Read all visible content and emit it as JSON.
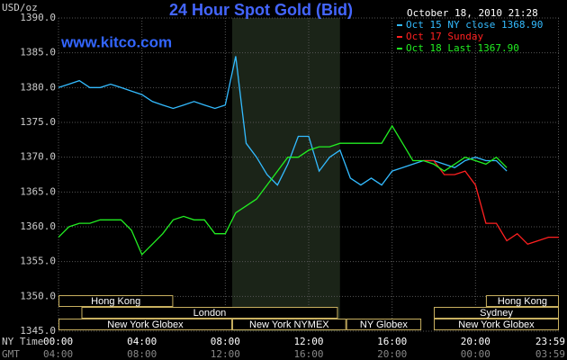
{
  "chart_data": {
    "type": "line",
    "title": "24 Hour Spot Gold (Bid)",
    "source": "www.kitco.com",
    "date_label": "October 18, 2010 21:28",
    "y_unit": "USD/oz",
    "x_axis_labels": [
      "NY Time",
      "GMT"
    ],
    "x": [
      0,
      0.5,
      1,
      1.5,
      2,
      2.5,
      3,
      3.5,
      4,
      4.5,
      5,
      5.5,
      6,
      6.5,
      7,
      7.5,
      8,
      8.5,
      9,
      9.5,
      10,
      10.5,
      11,
      11.5,
      12,
      12.5,
      13,
      13.5,
      14,
      14.5,
      15,
      15.5,
      16,
      16.5,
      17,
      17.5,
      18,
      18.5,
      19,
      19.5,
      20,
      20.5,
      21,
      21.5,
      22,
      22.5,
      23,
      23.5,
      24
    ],
    "series": [
      {
        "name": "Oct 15 NY close 1368.90",
        "color": "#33bbff",
        "values": [
          1380,
          1380.5,
          1381,
          1380,
          1380,
          1380.5,
          1380,
          1379.5,
          1379,
          1378,
          1377.5,
          1377,
          1377.5,
          1378,
          1377.5,
          1377,
          1377.5,
          1384.5,
          1372,
          1370,
          1367.5,
          1366,
          1369,
          1373,
          1373,
          1368,
          1370,
          1371,
          1367,
          1366,
          1367,
          1366,
          1368,
          1368.5,
          1369,
          1369.5,
          1369.5,
          1369,
          1368.5,
          1369.5,
          1370,
          1369.5,
          1369.5,
          1368,
          null,
          null,
          null,
          null,
          null
        ]
      },
      {
        "name": "Oct 17 Sunday",
        "color": "#ff2020",
        "values": [
          null,
          null,
          null,
          null,
          null,
          null,
          null,
          null,
          null,
          null,
          null,
          null,
          null,
          null,
          null,
          null,
          null,
          null,
          null,
          null,
          null,
          null,
          null,
          null,
          null,
          null,
          null,
          null,
          null,
          null,
          null,
          null,
          null,
          null,
          null,
          1369.5,
          1369.5,
          1367.5,
          1367.5,
          1368,
          1366,
          1360.5,
          1360.5,
          1358,
          1359,
          1357.5,
          1358,
          1358.5,
          1358.5
        ]
      },
      {
        "name": "Oct 18 Last 1367.90",
        "color": "#22ee22",
        "values": [
          1358.5,
          1360,
          1360.5,
          1360.5,
          1361,
          1361,
          1361,
          1359.5,
          1356,
          1357.5,
          1359,
          1361,
          1361.5,
          1361,
          1361,
          1359,
          1359,
          1362,
          1363,
          1364,
          1366,
          1368,
          1370,
          1370,
          1371,
          1371.5,
          1371.5,
          1372,
          1372,
          1372,
          1372,
          1372,
          1374.5,
          1372,
          1369.5,
          1369.5,
          1369,
          1368,
          1369,
          1370,
          1369.5,
          1369,
          1370,
          1368.5,
          null,
          null,
          null,
          null,
          null
        ]
      }
    ],
    "xlim": [
      0,
      24
    ],
    "xticks": [
      {
        "value": 0,
        "label": "00:00"
      },
      {
        "value": 4,
        "label": "04:00"
      },
      {
        "value": 8,
        "label": "08:00"
      },
      {
        "value": 12,
        "label": "12:00"
      },
      {
        "value": 16,
        "label": "16:00"
      },
      {
        "value": 20,
        "label": "20:00"
      },
      {
        "value": 23.98,
        "label": "23:59"
      }
    ],
    "gmt_ticks": [
      "04:00",
      "08:00",
      "12:00",
      "16:00",
      "20:00",
      "00:00",
      "03:59"
    ],
    "ylim": [
      1345,
      1390
    ],
    "yticks": [
      {
        "value": 1345,
        "label": "1345.0"
      },
      {
        "value": 1350,
        "label": "1350.0"
      },
      {
        "value": 1355,
        "label": "1355.0"
      },
      {
        "value": 1360,
        "label": "1360.0"
      },
      {
        "value": 1365,
        "label": "1365.0"
      },
      {
        "value": 1370,
        "label": "1370.0"
      },
      {
        "value": 1375,
        "label": "1375.0"
      },
      {
        "value": 1380,
        "label": "1380.0"
      },
      {
        "value": 1385,
        "label": "1385.0"
      },
      {
        "value": 1390,
        "label": "1390.0"
      }
    ],
    "grid": true,
    "highlight": {
      "start": 8.33,
      "end": 13.5
    },
    "sessions": [
      [
        {
          "label": "Hong Kong",
          "start": 0,
          "end": 5.5
        },
        {
          "label": "Hong Kong",
          "start": 20.5,
          "end": 24
        }
      ],
      [
        {
          "label": "London",
          "start": 1.1,
          "end": 13.4
        },
        {
          "label": "Sydney",
          "start": 18,
          "end": 24
        }
      ],
      [
        {
          "label": "New York Globex",
          "start": 0,
          "end": 8.33
        },
        {
          "label": "New York NYMEX",
          "start": 8.33,
          "end": 13.8
        },
        {
          "label": "NY Globex",
          "start": 13.8,
          "end": 17.4
        },
        {
          "label": "New York Globex",
          "start": 18,
          "end": 24
        }
      ]
    ]
  }
}
